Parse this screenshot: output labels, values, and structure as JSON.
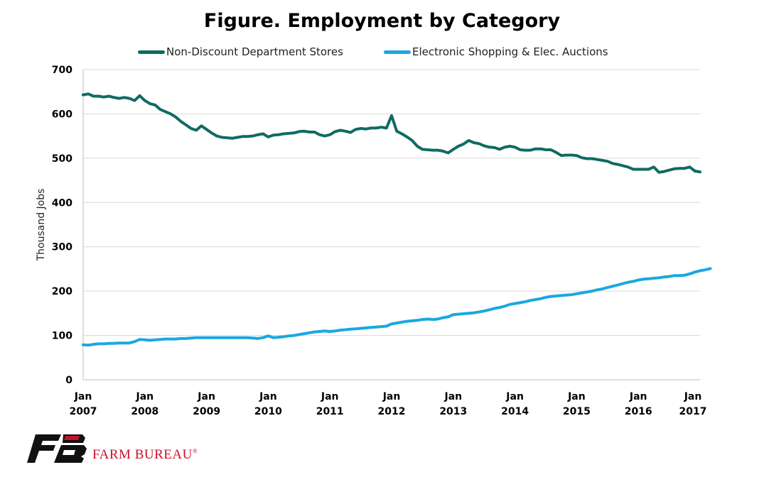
{
  "chart_data": {
    "type": "line",
    "title": "Figure. Employment by Category",
    "ylabel": "Thousand Jobs",
    "xlabel": "",
    "ylim": [
      0,
      700
    ],
    "yticks": [
      "0",
      "100",
      "200",
      "300",
      "400",
      "500",
      "600",
      "700"
    ],
    "grid": "horizontal",
    "legend_position": "top",
    "xticks": [
      {
        "month": "Jan",
        "year": "2007"
      },
      {
        "month": "Jan",
        "year": "2008"
      },
      {
        "month": "Jan",
        "year": "2009"
      },
      {
        "month": "Jan",
        "year": "2010"
      },
      {
        "month": "Jan",
        "year": "2011"
      },
      {
        "month": "Jan",
        "year": "2012"
      },
      {
        "month": "Jan",
        "year": "2013"
      },
      {
        "month": "Jan",
        "year": "2014"
      },
      {
        "month": "Jan",
        "year": "2015"
      },
      {
        "month": "Jan",
        "year": "2016"
      },
      {
        "month": "Jan",
        "year": "2017"
      }
    ],
    "x_start": "2007-01",
    "series": [
      {
        "name": "Non-Discount Department Stores",
        "color": "#0f6b64",
        "values": [
          643,
          645,
          640,
          640,
          638,
          640,
          637,
          635,
          637,
          635,
          630,
          641,
          630,
          623,
          620,
          610,
          605,
          600,
          593,
          583,
          575,
          567,
          563,
          573,
          565,
          557,
          550,
          547,
          546,
          545,
          547,
          549,
          549,
          550,
          553,
          555,
          548,
          552,
          553,
          555,
          556,
          557,
          560,
          561,
          559,
          559,
          553,
          550,
          553,
          560,
          563,
          561,
          558,
          565,
          567,
          566,
          568,
          568,
          570,
          568,
          596,
          561,
          555,
          548,
          540,
          527,
          520,
          519,
          518,
          518,
          516,
          512,
          520,
          527,
          532,
          540,
          535,
          533,
          528,
          525,
          524,
          520,
          525,
          527,
          525,
          519,
          518,
          518,
          521,
          521,
          519,
          519,
          513,
          506,
          507,
          507,
          506,
          501,
          499,
          499,
          497,
          495,
          493,
          488,
          486,
          483,
          480,
          475,
          475,
          475,
          475,
          480,
          468,
          470,
          473,
          476,
          477,
          477,
          480,
          471,
          469
        ]
      },
      {
        "name": "Electronic Shopping & Elec. Auctions",
        "color": "#1ba7e1",
        "values": [
          79,
          78,
          80,
          81,
          81,
          82,
          82,
          83,
          83,
          83,
          86,
          91,
          90,
          89,
          90,
          91,
          92,
          92,
          92,
          93,
          93,
          94,
          95,
          95,
          95,
          95,
          95,
          95,
          95,
          95,
          95,
          95,
          95,
          94,
          93,
          95,
          99,
          95,
          96,
          97,
          99,
          100,
          102,
          104,
          106,
          108,
          109,
          110,
          109,
          110,
          112,
          113,
          114,
          115,
          116,
          117,
          118,
          119,
          120,
          121,
          126,
          128,
          130,
          132,
          133,
          134,
          136,
          137,
          136,
          137,
          140,
          142,
          147,
          148,
          149,
          150,
          151,
          153,
          155,
          158,
          161,
          163,
          166,
          170,
          172,
          174,
          176,
          179,
          181,
          183,
          186,
          188,
          189,
          190,
          191,
          192,
          194,
          196,
          198,
          200,
          203,
          205,
          208,
          211,
          214,
          217,
          220,
          222,
          225,
          227,
          228,
          229,
          230,
          232,
          233,
          235,
          235,
          236,
          239,
          243,
          246,
          248,
          251
        ]
      }
    ]
  },
  "brand": {
    "name": "FARM BUREAU",
    "reg": "®"
  }
}
